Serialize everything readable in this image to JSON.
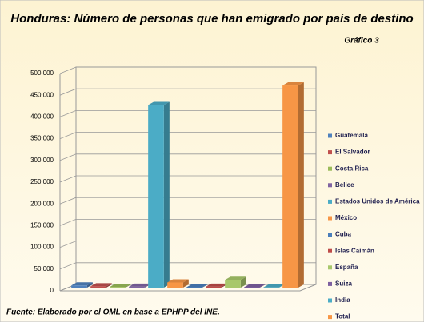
{
  "chart_data": {
    "type": "bar",
    "title": "Honduras: Número de personas que han emigrado por país de destino",
    "subtitle": "Gráfico 3",
    "source": "Fuente: Elaborado por el OML en base a EPHPP del INE.",
    "categories": [
      "Guatemala",
      "El Salvador",
      "Costa Rica",
      "Belice",
      "Estados Unidos de América",
      "México",
      "Cuba",
      "Islas Caimán",
      "España",
      "Suiza",
      "India",
      "Total"
    ],
    "values": [
      5000,
      3000,
      1500,
      2000,
      420000,
      12000,
      1000,
      2000,
      18000,
      1000,
      500,
      465000
    ],
    "colors": [
      "#4f81bd",
      "#c0504d",
      "#9bbb59",
      "#8064a2",
      "#4bacc6",
      "#f79646",
      "#4a7ebb",
      "#be4b48",
      "#a8c86b",
      "#7d5fa0",
      "#4bacc6",
      "#f79646"
    ],
    "ylim": [
      0,
      500000
    ],
    "yticks": [
      0,
      {
        "value": 50000,
        "label": "50,000"
      },
      {
        "value": 100000,
        "label": "100,000"
      },
      {
        "value": 150000,
        "label": "150,000"
      },
      {
        "value": 200000,
        "label": "200,000"
      },
      {
        "value": 250000,
        "label": "250,000"
      },
      {
        "value": 300000,
        "label": "300,000"
      },
      {
        "value": 350000,
        "label": "350,000"
      },
      {
        "value": 400000,
        "label": "400,000"
      },
      {
        "value": 450000,
        "label": "450,000"
      },
      {
        "value": 500000,
        "label": "500,000"
      }
    ],
    "grid": true,
    "legend": "right"
  }
}
